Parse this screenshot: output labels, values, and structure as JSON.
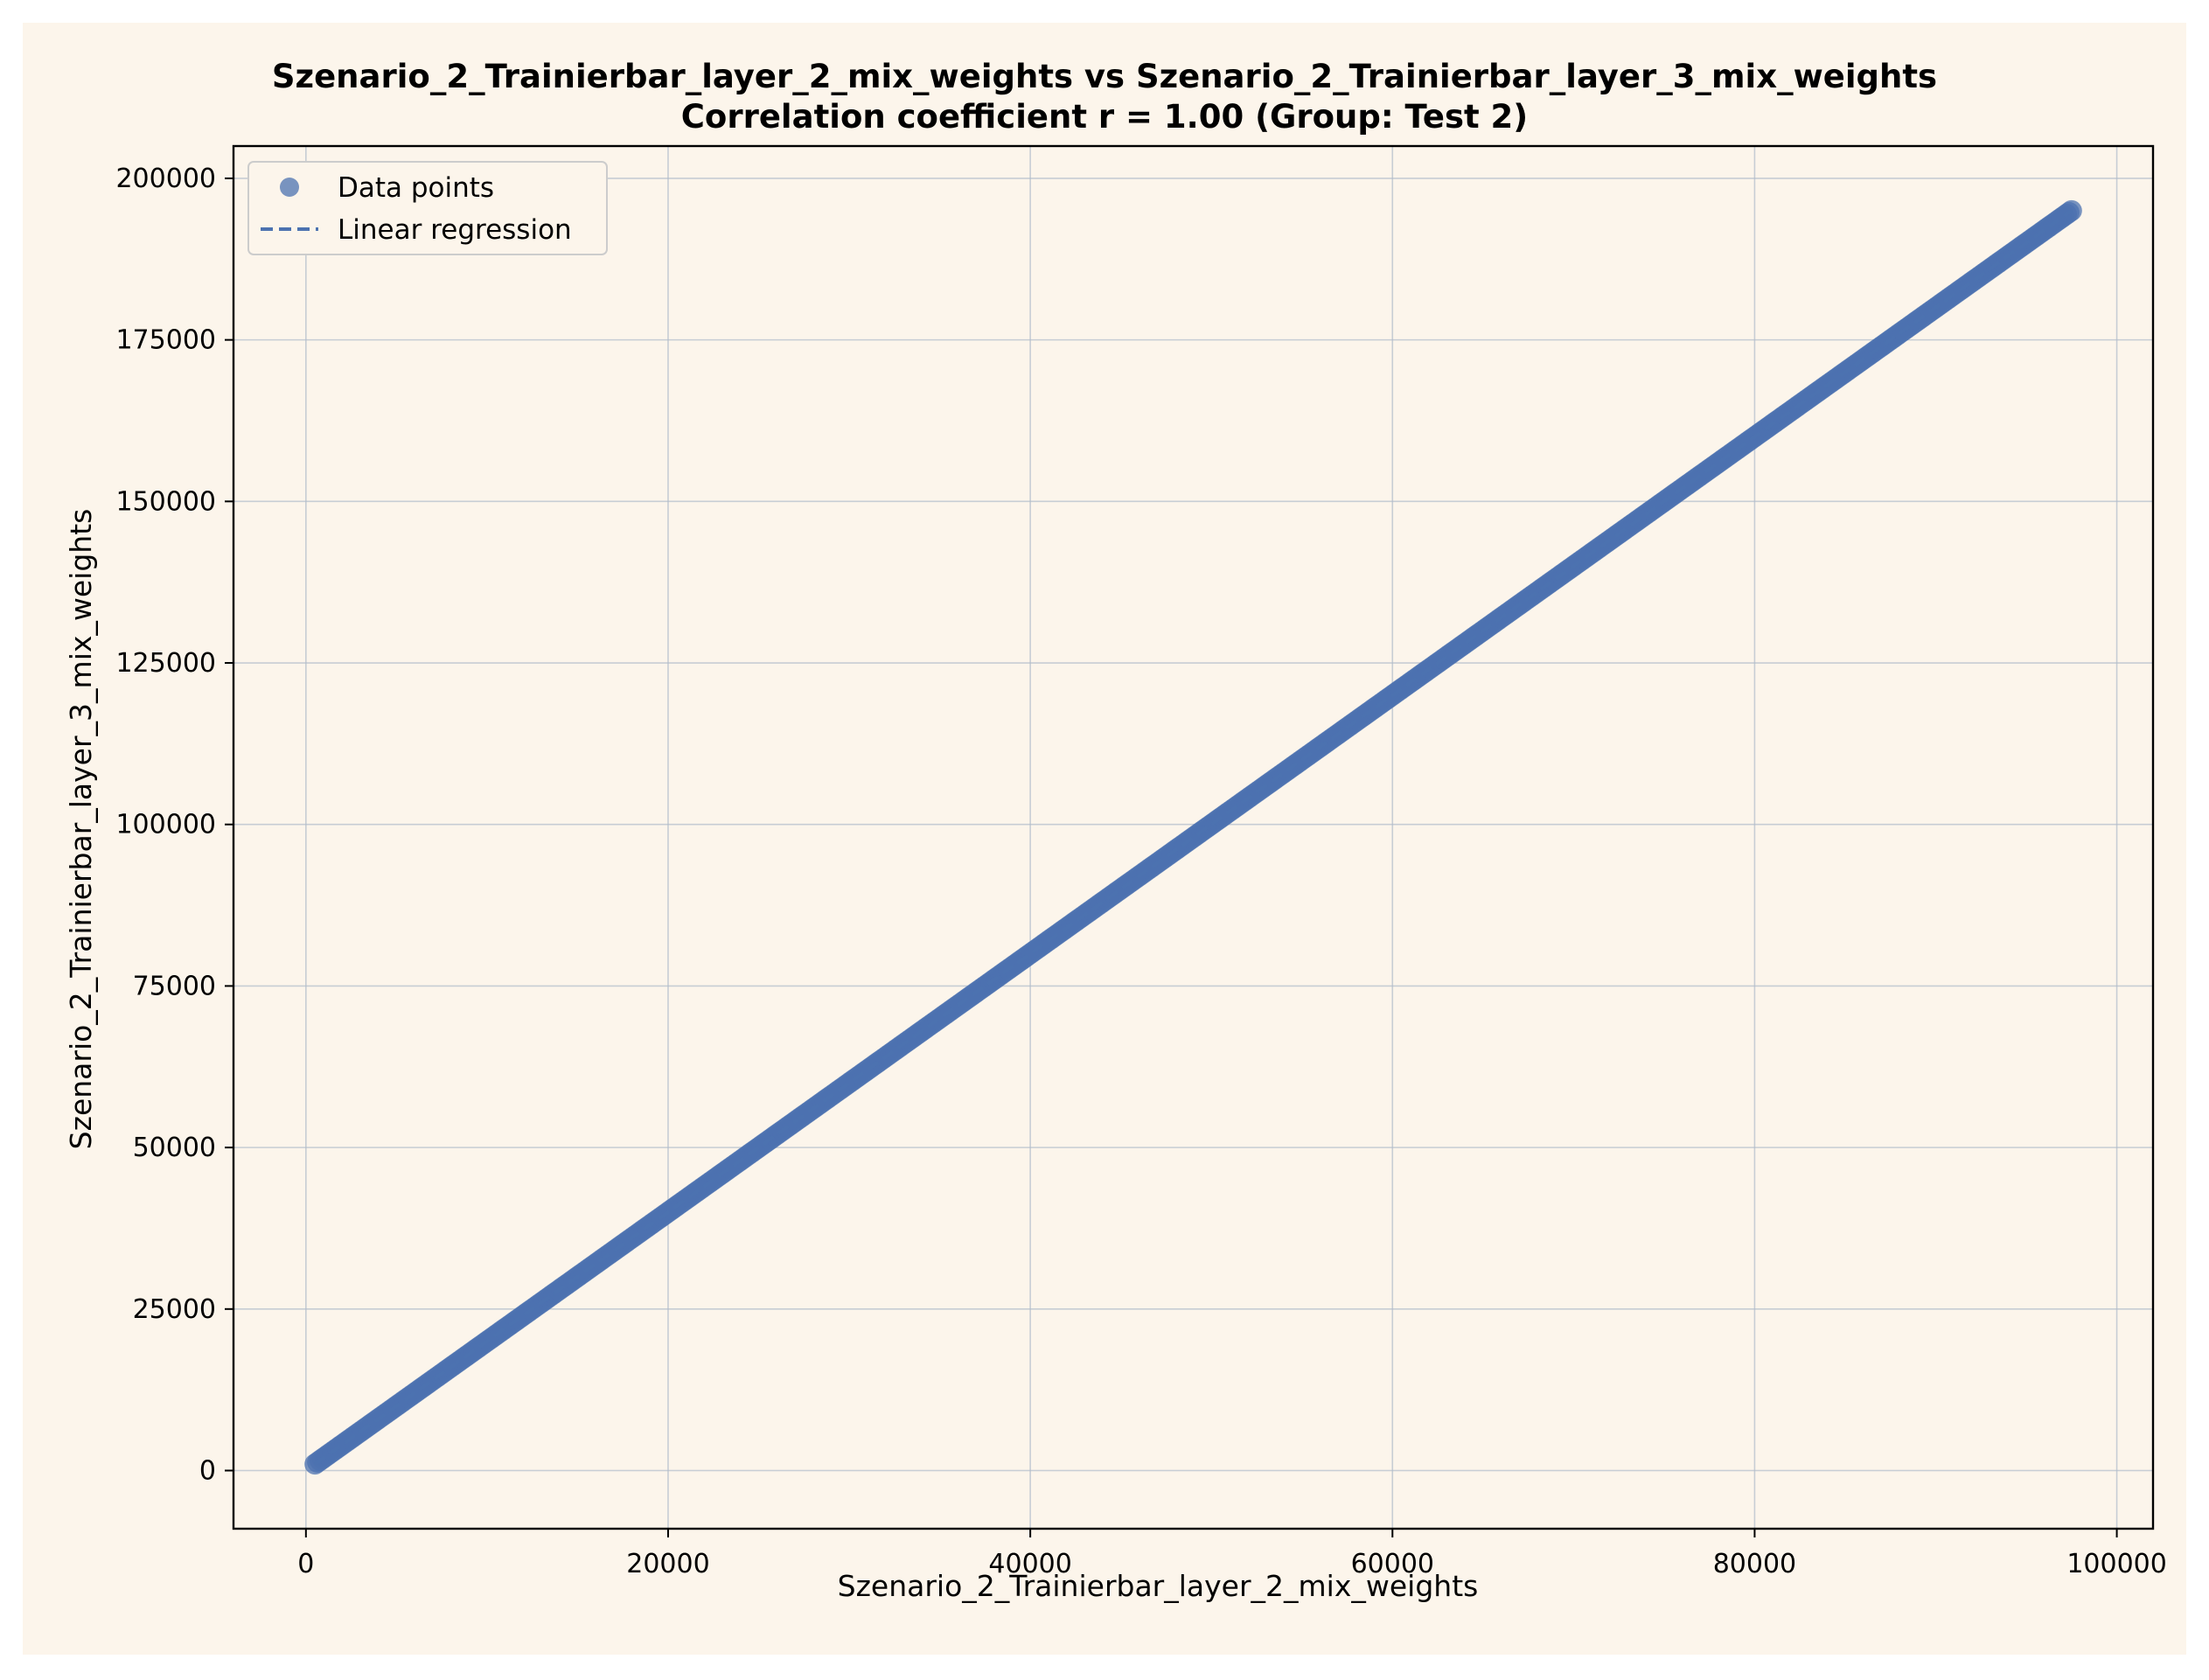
{
  "chart_data": {
    "type": "scatter",
    "title": "Szenario_2_Trainierbar_layer_2_mix_weights vs Szenario_2_Trainierbar_layer_3_mix_weights",
    "subtitle": "Correlation coefficient r = 1.00 (Group: Test 2)",
    "xlabel": "Szenario_2_Trainierbar_layer_2_mix_weights",
    "ylabel": "Szenario_2_Trainierbar_layer_3_mix_weights",
    "xlim": [
      -4000,
      102000
    ],
    "ylim": [
      -9000,
      205000
    ],
    "xticks": [
      0,
      20000,
      40000,
      60000,
      80000,
      100000
    ],
    "yticks": [
      0,
      25000,
      50000,
      75000,
      100000,
      125000,
      150000,
      175000,
      200000
    ],
    "xtick_labels": [
      "0",
      "20000",
      "40000",
      "60000",
      "80000",
      "100000"
    ],
    "ytick_labels": [
      "0",
      "25000",
      "50000",
      "75000",
      "100000",
      "125000",
      "150000",
      "175000",
      "200000"
    ],
    "grid": true,
    "legend_position": "top-left",
    "series": [
      {
        "name": "Data points",
        "kind": "scatter",
        "color": "#4c72b0",
        "x_range": [
          500,
          97500
        ],
        "y_range": [
          1000,
          195000
        ],
        "relation": "y = 2x"
      },
      {
        "name": "Linear regression",
        "kind": "line",
        "style": "dashed",
        "color": "#4c72b0",
        "slope": 2,
        "intercept": 0
      }
    ],
    "colors": {
      "figure_bg": "#fcf5eb",
      "axes_bg": "#fcf5eb",
      "grid": "#b0bccb",
      "point": "#4c72b0"
    }
  }
}
